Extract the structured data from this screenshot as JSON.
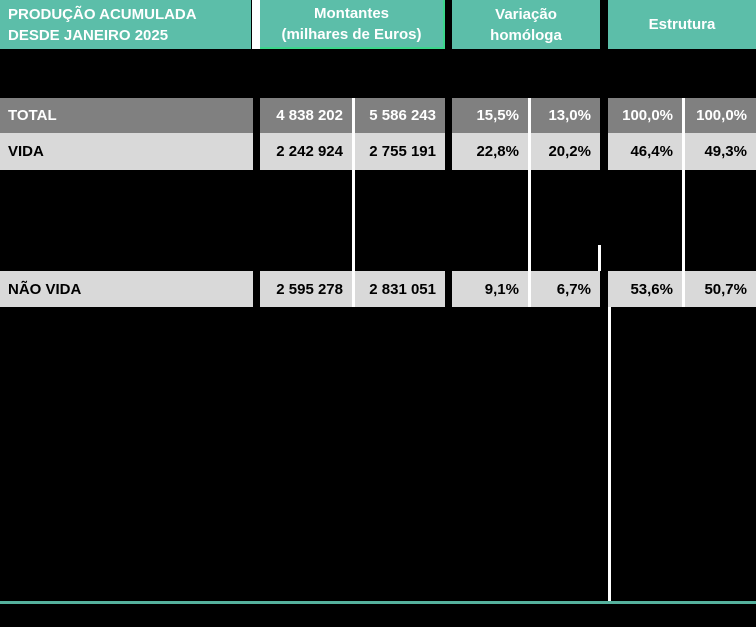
{
  "chart_data": {
    "type": "table",
    "title_line1": "PRODUÇÃO ACUMULADA",
    "title_line2": "DESDE JANEIRO 2025",
    "col_groups": [
      {
        "line1": "Montantes",
        "line2": "(milhares de Euros)"
      },
      {
        "line1": "Variação",
        "line2": "homóloga"
      },
      {
        "line1": "Estrutura",
        "line2": ""
      }
    ],
    "columns_per_group": 2,
    "rows": [
      {
        "label": "TOTAL",
        "values": [
          "4 838 202",
          "5 586 243",
          "15,5%",
          "13,0%",
          "100,0%",
          "100,0%"
        ]
      },
      {
        "label": "VIDA",
        "values": [
          "2 242 924",
          "2 755 191",
          "22,8%",
          "20,2%",
          "46,4%",
          "49,3%"
        ]
      },
      {
        "label": "NÃO VIDA",
        "values": [
          "2 595 278",
          "2 831 051",
          "9,1%",
          "6,7%",
          "53,6%",
          "50,7%"
        ]
      }
    ],
    "layout_hints": {
      "background": "black canvas",
      "row_styles": [
        "dark-gray white text",
        "light-gray black text",
        "light-gray black text"
      ],
      "dividers": "white vertical lines between paired columns",
      "bottom_rule": "teal horizontal line near bottom"
    }
  },
  "colors": {
    "header_teal": "#5CBEA9",
    "accent_green_border": "#3BD68C",
    "row_dark_gray": "#808080",
    "row_light_gray": "#D9D9D9",
    "divider_white": "#FFFFFF",
    "bottom_rule_teal": "#55B19D",
    "background_black": "#000000"
  }
}
